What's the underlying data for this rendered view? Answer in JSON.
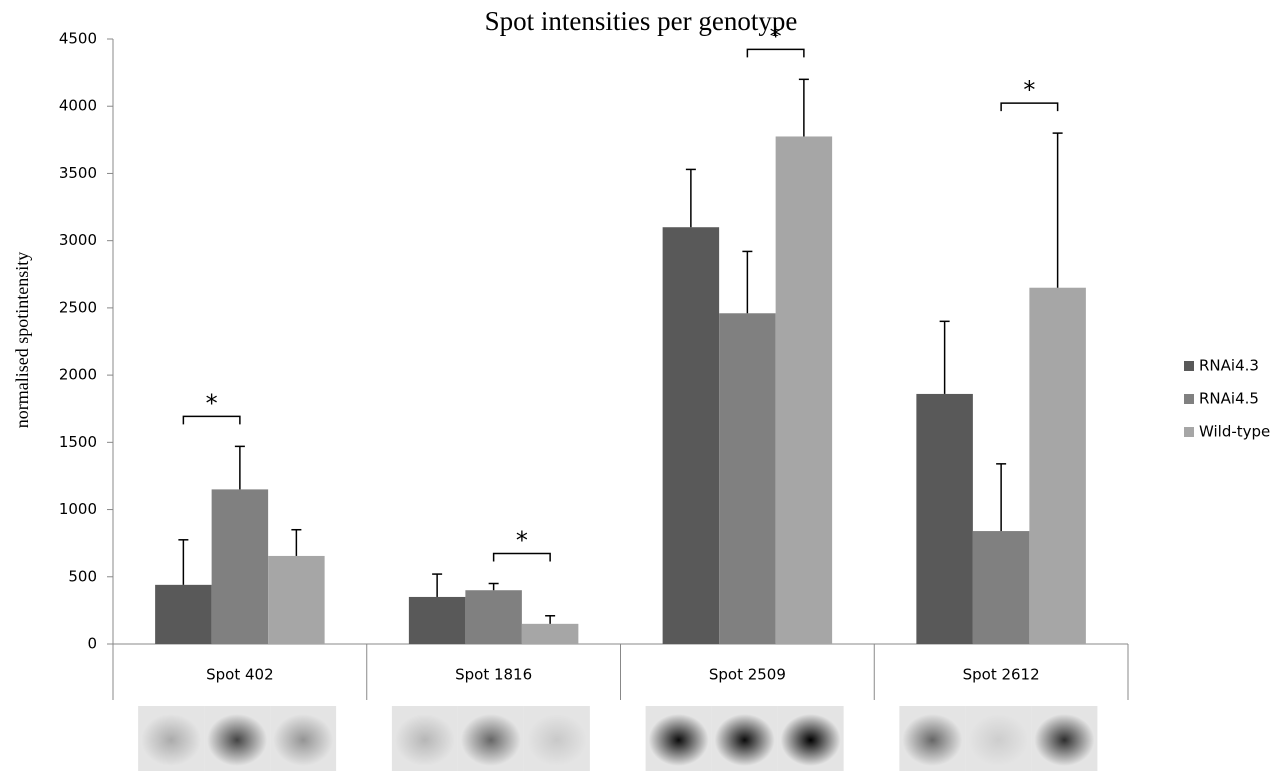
{
  "chart_data": {
    "type": "bar",
    "title": "Spot intensities per genotype",
    "y_label": "normalised spotintensity",
    "categories": [
      "Spot 402",
      "Spot 1816",
      "Spot 2509",
      "Spot 2612"
    ],
    "series": [
      {
        "name": "RNAi4.3",
        "color": "#595959",
        "values": [
          440,
          350,
          3100,
          1860
        ],
        "errors": [
          335,
          170,
          430,
          540
        ]
      },
      {
        "name": "RNAi4.5",
        "color": "#808080",
        "values": [
          1150,
          400,
          2460,
          840
        ],
        "errors": [
          320,
          50,
          460,
          500
        ]
      },
      {
        "name": "Wild-type",
        "color": "#a6a6a6",
        "values": [
          655,
          150,
          3775,
          2650
        ],
        "errors": [
          195,
          60,
          425,
          1150
        ]
      }
    ],
    "annotations": [
      {
        "text": "*",
        "category": 0,
        "series": [
          0,
          1
        ]
      },
      {
        "text": "*",
        "category": 1,
        "series": [
          1,
          2
        ]
      },
      {
        "text": "*",
        "category": 2,
        "series": [
          1,
          2
        ]
      },
      {
        "text": "*",
        "category": 3,
        "series": [
          1,
          2
        ]
      }
    ],
    "ylim": [
      0,
      4500
    ],
    "yticks": [
      0,
      500,
      1000,
      1500,
      2000,
      2500,
      3000,
      3500,
      4000,
      4500
    ],
    "grid": false,
    "legend": "right"
  }
}
